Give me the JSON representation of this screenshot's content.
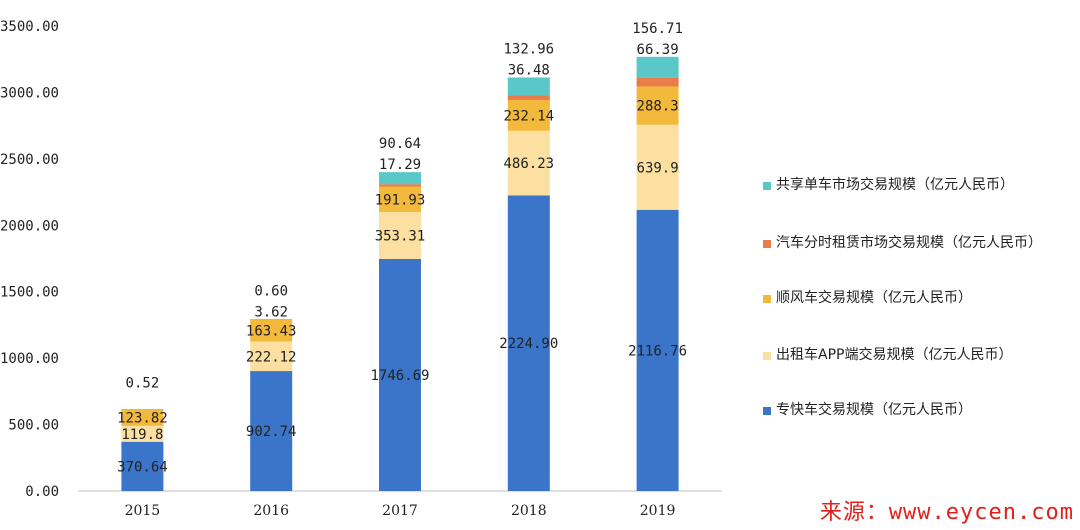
{
  "chart_data": {
    "type": "bar",
    "stacked": true,
    "categories": [
      "2015",
      "2016",
      "2017",
      "2018",
      "2019"
    ],
    "y_ticks": [
      "0.00",
      "500.00",
      "1000.00",
      "1500.00",
      "2000.00",
      "2500.00",
      "3000.00",
      "3500.00"
    ],
    "ylim": [
      0,
      3500
    ],
    "grid": false,
    "legend_position": "right",
    "series": [
      {
        "name": "专快车交易规模（亿元人民币）",
        "color": "#3a75c9",
        "values": [
          370.64,
          902.74,
          1746.69,
          2224.9,
          2116.76
        ],
        "labels": [
          "370.64",
          "902.74",
          "1746.69",
          "2224.90",
          "2116.76"
        ]
      },
      {
        "name": "出租车APP端交易规模（亿元人民币）",
        "color": "#fbe0a1",
        "values": [
          119.8,
          222.12,
          353.31,
          486.23,
          639.9
        ],
        "labels": [
          "119.8",
          "222.12",
          "353.31",
          "486.23",
          "639.9"
        ]
      },
      {
        "name": "顺风车交易规模（亿元人民币）",
        "color": "#f3b93c",
        "values": [
          123.82,
          163.43,
          191.93,
          232.14,
          288.3
        ],
        "labels": [
          "123.82",
          "163.43",
          "191.93",
          "232.14",
          "288.3"
        ]
      },
      {
        "name": "汽车分时租赁市场交易规模（亿元人民币）",
        "color": "#ea7b4a",
        "values": [
          0.52,
          3.62,
          17.29,
          36.48,
          66.39
        ],
        "labels": [
          "0.52",
          "3.62",
          "17.29",
          "36.48",
          "66.39"
        ]
      },
      {
        "name": "共享单车市场交易规模（亿元人民币）",
        "color": "#5ac8c8",
        "values": [
          0,
          0.6,
          90.64,
          132.96,
          156.71
        ],
        "labels": [
          "",
          "0.60",
          "90.64",
          "132.96",
          "156.71"
        ]
      }
    ],
    "legend_order": [
      4,
      3,
      2,
      1,
      0
    ]
  },
  "source_text": "来源：www.eycen.com"
}
